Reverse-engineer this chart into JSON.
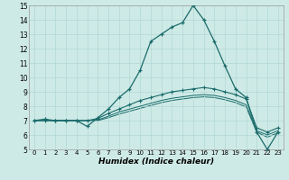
{
  "xlabel": "Humidex (Indice chaleur)",
  "bg_color": "#ceeae6",
  "grid_color": "#b0d8d4",
  "line_color": "#1a6b6b",
  "xlim": [
    -0.5,
    23.5
  ],
  "ylim": [
    5,
    15
  ],
  "xticks": [
    0,
    1,
    2,
    3,
    4,
    5,
    6,
    7,
    8,
    9,
    10,
    11,
    12,
    13,
    14,
    15,
    16,
    17,
    18,
    19,
    20,
    21,
    22,
    23
  ],
  "yticks": [
    5,
    6,
    7,
    8,
    9,
    10,
    11,
    12,
    13,
    14,
    15
  ],
  "series1_x": [
    0,
    1,
    2,
    3,
    4,
    5,
    6,
    7,
    8,
    9,
    10,
    11,
    12,
    13,
    14,
    15,
    16,
    17,
    18,
    19,
    20,
    21,
    22,
    23
  ],
  "series1_y": [
    7.0,
    7.1,
    7.0,
    7.0,
    7.0,
    6.6,
    7.2,
    7.8,
    8.6,
    9.2,
    10.5,
    12.5,
    13.0,
    13.5,
    13.8,
    15.0,
    14.0,
    12.5,
    10.8,
    9.2,
    8.6,
    6.2,
    5.0,
    6.2
  ],
  "series2_x": [
    0,
    1,
    2,
    3,
    4,
    5,
    6,
    7,
    8,
    9,
    10,
    11,
    12,
    13,
    14,
    15,
    16,
    17,
    18,
    19,
    20,
    21,
    22,
    23
  ],
  "series2_y": [
    7.0,
    7.0,
    7.0,
    7.0,
    7.0,
    7.0,
    7.15,
    7.5,
    7.8,
    8.1,
    8.4,
    8.6,
    8.8,
    9.0,
    9.1,
    9.2,
    9.3,
    9.2,
    9.0,
    8.8,
    8.5,
    6.5,
    6.2,
    6.5
  ],
  "series3_x": [
    0,
    1,
    2,
    3,
    4,
    5,
    6,
    7,
    8,
    9,
    10,
    11,
    12,
    13,
    14,
    15,
    16,
    17,
    18,
    19,
    20,
    21,
    22,
    23
  ],
  "series3_y": [
    7.0,
    7.0,
    7.0,
    7.0,
    7.0,
    7.0,
    7.05,
    7.3,
    7.6,
    7.8,
    8.0,
    8.2,
    8.4,
    8.55,
    8.65,
    8.75,
    8.8,
    8.75,
    8.6,
    8.4,
    8.1,
    6.3,
    6.0,
    6.3
  ],
  "series4_x": [
    0,
    1,
    2,
    3,
    4,
    5,
    6,
    7,
    8,
    9,
    10,
    11,
    12,
    13,
    14,
    15,
    16,
    17,
    18,
    19,
    20,
    21,
    22,
    23
  ],
  "series4_y": [
    7.0,
    7.0,
    7.0,
    7.0,
    7.0,
    7.0,
    7.0,
    7.2,
    7.45,
    7.65,
    7.85,
    8.05,
    8.25,
    8.4,
    8.5,
    8.6,
    8.65,
    8.6,
    8.45,
    8.25,
    7.95,
    6.2,
    5.85,
    6.15
  ]
}
